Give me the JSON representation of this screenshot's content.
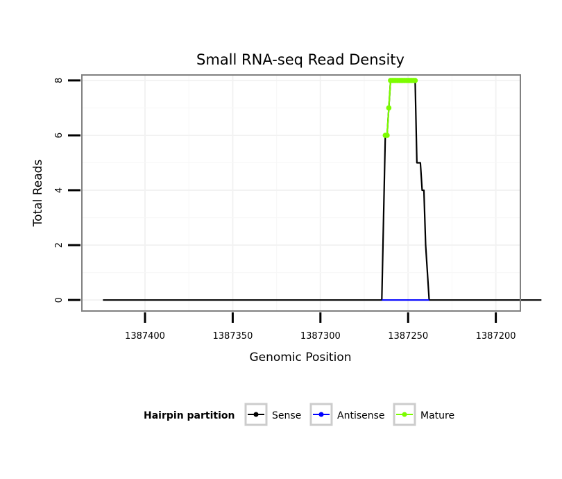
{
  "chart_data": {
    "type": "line",
    "title": "Small RNA-seq Read Density",
    "xlabel": "Genomic Position",
    "ylabel": "Total Reads",
    "x_reversed": true,
    "xlim": [
      1387436,
      1387186
    ],
    "ylim": [
      -0.4,
      8.2
    ],
    "xticks": [
      1387400,
      1387350,
      1387300,
      1387250,
      1387200
    ],
    "xtick_labels": [
      "1387400",
      "1387350",
      "1387300",
      "1387250",
      "1387200"
    ],
    "yticks": [
      0,
      2,
      4,
      6,
      8
    ],
    "ytick_labels": [
      "0",
      "2",
      "4",
      "6",
      "8"
    ],
    "grid": true,
    "series": [
      {
        "name": "Sense",
        "color": "#000000",
        "x": [
          1387424,
          1387265,
          1387263,
          1387262,
          1387261,
          1387260,
          1387259,
          1387258,
          1387257,
          1387256,
          1387255,
          1387254,
          1387253,
          1387252,
          1387251,
          1387250,
          1387249,
          1387248,
          1387247,
          1387246,
          1387245,
          1387244,
          1387243,
          1387242,
          1387241,
          1387240,
          1387239,
          1387238,
          1387237,
          1387236,
          1387235,
          1387234,
          1387233,
          1387232,
          1387231,
          1387230,
          1387229,
          1387228,
          1387227,
          1387226,
          1387225,
          1387224,
          1387223,
          1387222,
          1387221,
          1387220,
          1387219,
          1387218,
          1387217,
          1387216,
          1387215,
          1387214,
          1387213,
          1387212,
          1387211,
          1387210,
          1387209,
          1387208,
          1387207,
          1387206,
          1387205,
          1387204,
          1387203,
          1387202,
          1387201,
          1387200,
          1387199,
          1387198,
          1387197,
          1387196,
          1387195,
          1387194,
          1387193,
          1387192,
          1387191,
          1387190,
          1387189,
          1387188,
          1387187,
          1387186,
          1387185,
          1387184,
          1387183,
          1387182,
          1387181,
          1387180,
          1387179,
          1387178,
          1387177,
          1387176,
          1387175,
          1387174
        ],
        "y": [
          0,
          0,
          6,
          6,
          7,
          8,
          8,
          8,
          8,
          8,
          8,
          8,
          8,
          8,
          8,
          8,
          8,
          8,
          8,
          8,
          5,
          5,
          5,
          4,
          4,
          2,
          1,
          0,
          0,
          0,
          0,
          0,
          0,
          0,
          0,
          0,
          0,
          0,
          0,
          0,
          0,
          0,
          0,
          0,
          0,
          0,
          0,
          0,
          0,
          0,
          0,
          0,
          0,
          0,
          0,
          0,
          0,
          0,
          0,
          0,
          0,
          0,
          0,
          0,
          0,
          0,
          0,
          0,
          0,
          0,
          0,
          0,
          0,
          0,
          0,
          0,
          0,
          0,
          0,
          0,
          0,
          0,
          0,
          0,
          0,
          0,
          0,
          0,
          0,
          0,
          0,
          0
        ]
      },
      {
        "name": "Antisense",
        "color": "#0000ff",
        "x": [
          1387265,
          1387238
        ],
        "y": [
          0,
          0
        ]
      },
      {
        "name": "Mature",
        "color": "#7cfc00",
        "x": [
          1387263,
          1387262,
          1387261,
          1387260,
          1387259,
          1387258,
          1387257,
          1387256,
          1387255,
          1387254,
          1387253,
          1387252,
          1387251,
          1387250,
          1387249,
          1387248,
          1387247,
          1387246
        ],
        "y": [
          6,
          6,
          7,
          8,
          8,
          8,
          8,
          8,
          8,
          8,
          8,
          8,
          8,
          8,
          8,
          8,
          8,
          8
        ]
      }
    ],
    "legend": {
      "title": "Hairpin partition",
      "position": "bottom",
      "entries": [
        "Sense",
        "Antisense",
        "Mature"
      ]
    }
  }
}
